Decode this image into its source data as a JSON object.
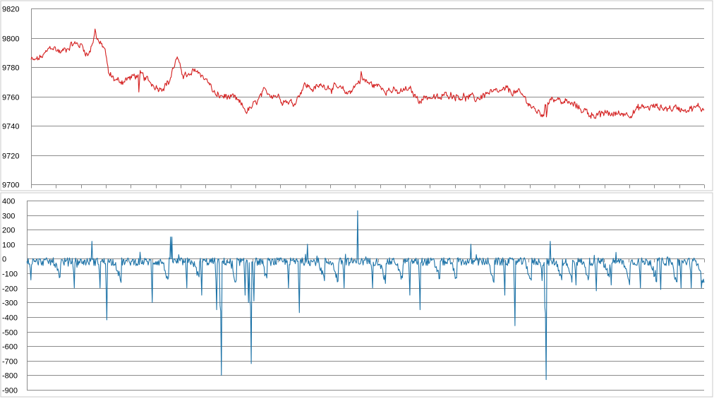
{
  "chart_data": [
    {
      "type": "line",
      "title": "",
      "xlabel": "",
      "ylabel": "",
      "ylim": [
        9700,
        9820
      ],
      "yticks": [
        9820,
        9800,
        9780,
        9760,
        9740,
        9720,
        9700
      ],
      "grid": true,
      "legend": "none",
      "x_count": 1000,
      "series": [
        {
          "color": "#d42020",
          "keyframes": [
            [
              0,
              9785
            ],
            [
              5,
              9784
            ],
            [
              20,
              9788
            ],
            [
              30,
              9794
            ],
            [
              45,
              9790
            ],
            [
              60,
              9796
            ],
            [
              75,
              9795
            ],
            [
              85,
              9788
            ],
            [
              95,
              9803
            ],
            [
              103,
              9795
            ],
            [
              110,
              9792
            ],
            [
              115,
              9775
            ],
            [
              130,
              9770
            ],
            [
              150,
              9773
            ],
            [
              160,
              9775
            ],
            [
              175,
              9770
            ],
            [
              190,
              9766
            ],
            [
              205,
              9770
            ],
            [
              215,
              9785
            ],
            [
              225,
              9776
            ],
            [
              235,
              9773
            ],
            [
              245,
              9778
            ],
            [
              260,
              9772
            ],
            [
              275,
              9760
            ],
            [
              290,
              9760
            ],
            [
              305,
              9757
            ],
            [
              320,
              9750
            ],
            [
              330,
              9753
            ],
            [
              345,
              9762
            ],
            [
              360,
              9762
            ],
            [
              375,
              9758
            ],
            [
              390,
              9755
            ],
            [
              405,
              9768
            ],
            [
              420,
              9765
            ],
            [
              435,
              9768
            ],
            [
              450,
              9766
            ],
            [
              470,
              9762
            ],
            [
              490,
              9772
            ],
            [
              505,
              9768
            ],
            [
              525,
              9766
            ],
            [
              545,
              9762
            ],
            [
              560,
              9765
            ],
            [
              575,
              9758
            ],
            [
              590,
              9760
            ],
            [
              605,
              9758
            ],
            [
              620,
              9762
            ],
            [
              640,
              9760
            ],
            [
              660,
              9758
            ],
            [
              675,
              9762
            ],
            [
              690,
              9762
            ],
            [
              705,
              9764
            ],
            [
              720,
              9763
            ],
            [
              735,
              9758
            ],
            [
              748,
              9750
            ],
            [
              760,
              9748
            ],
            [
              770,
              9760
            ],
            [
              785,
              9757
            ],
            [
              800,
              9755
            ],
            [
              815,
              9752
            ],
            [
              830,
              9748
            ],
            [
              850,
              9748
            ],
            [
              870,
              9748
            ],
            [
              890,
              9749
            ],
            [
              905,
              9752
            ],
            [
              925,
              9753
            ],
            [
              945,
              9752
            ],
            [
              960,
              9752
            ],
            [
              1000,
              9752
            ]
          ],
          "spikes": [
            [
              95,
              9806
            ],
            [
              217,
              9787
            ],
            [
              160,
              9763
            ],
            [
              490,
              9777
            ],
            [
              765,
              9746
            ],
            [
              845,
              9746
            ]
          ],
          "noise": 2.2
        }
      ]
    },
    {
      "type": "line",
      "title": "",
      "xlabel": "",
      "ylabel": "",
      "ylim": [
        -900,
        400
      ],
      "yticks": [
        400,
        300,
        200,
        100,
        0,
        -100,
        -200,
        -300,
        -400,
        -500,
        -600,
        -700,
        -800,
        -900
      ],
      "grid": true,
      "legend": "none",
      "x_count": 1000,
      "series": [
        {
          "color": "#1f74a8",
          "baseline": -20,
          "noise": 25,
          "spikes": [
            [
              6,
              -145
            ],
            [
              70,
              -200
            ],
            [
              96,
              120
            ],
            [
              108,
              -200
            ],
            [
              118,
              -420
            ],
            [
              185,
              -300
            ],
            [
              212,
              150
            ],
            [
              214,
              150
            ],
            [
              236,
              -200
            ],
            [
              258,
              -250
            ],
            [
              280,
              -350
            ],
            [
              287,
              -800
            ],
            [
              322,
              -250
            ],
            [
              327,
              -300
            ],
            [
              331,
              -720
            ],
            [
              335,
              -290
            ],
            [
              386,
              -200
            ],
            [
              402,
              -370
            ],
            [
              414,
              100
            ],
            [
              468,
              -200
            ],
            [
              488,
              330
            ],
            [
              510,
              -200
            ],
            [
              565,
              -250
            ],
            [
              580,
              -350
            ],
            [
              655,
              100
            ],
            [
              705,
              -250
            ],
            [
              720,
              -460
            ],
            [
              760,
              -150
            ],
            [
              766,
              -830
            ],
            [
              772,
              120
            ],
            [
              810,
              -180
            ],
            [
              840,
              -220
            ],
            [
              862,
              -180
            ],
            [
              905,
              -200
            ],
            [
              935,
              -210
            ],
            [
              965,
              -200
            ],
            [
              980,
              -200
            ],
            [
              995,
              -200
            ]
          ],
          "decays": [
            [
              40,
              -110
            ],
            [
              130,
              -150
            ],
            [
              200,
              -150
            ],
            [
              245,
              -120
            ],
            [
              300,
              -200
            ],
            [
              345,
              -120
            ],
            [
              430,
              -130
            ],
            [
              450,
              -150
            ],
            [
              520,
              -150
            ],
            [
              545,
              -150
            ],
            [
              600,
              -120
            ],
            [
              625,
              -130
            ],
            [
              680,
              -140
            ],
            [
              735,
              -150
            ],
            [
              780,
              -120
            ],
            [
              795,
              -140
            ],
            [
              820,
              -130
            ],
            [
              850,
              -120
            ],
            [
              880,
              -160
            ],
            [
              920,
              -150
            ],
            [
              950,
              -160
            ],
            [
              990,
              -180
            ]
          ]
        }
      ]
    }
  ]
}
